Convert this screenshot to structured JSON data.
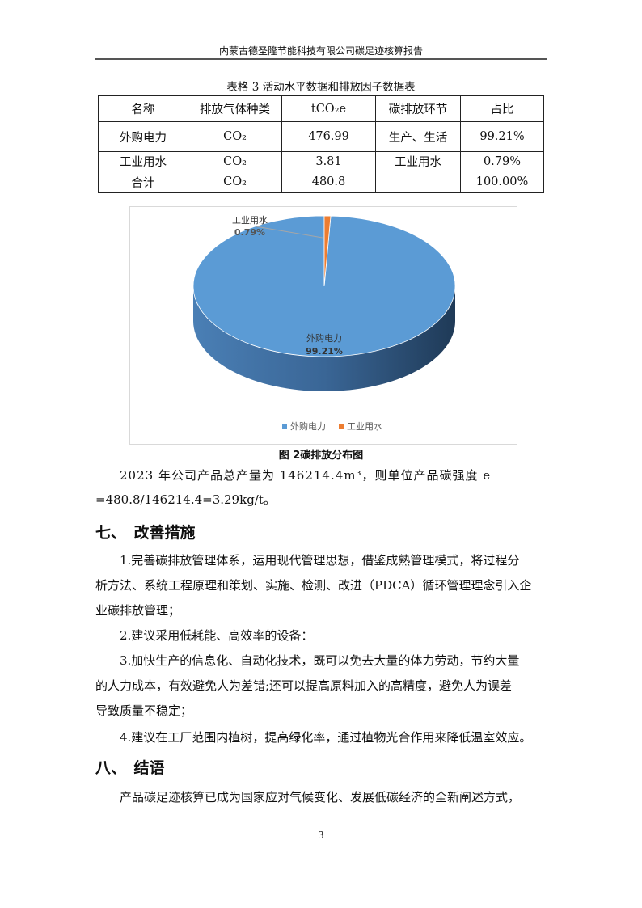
{
  "header": "内蒙古德圣隆节能科技有限公司碳足迹核算报告",
  "table": {
    "caption": "表格 3 活动水平数据和排放因子数据表",
    "headers": [
      "名称",
      "排放气体种类",
      "tCO₂e",
      "碳排放环节",
      "占比"
    ],
    "rows": [
      [
        "外购电力",
        "CO₂",
        "476.99",
        "生产、生活",
        "99.21%"
      ],
      [
        "工业用水",
        "CO₂",
        "3.81",
        "工业用水",
        "0.79%"
      ],
      [
        "合计",
        "CO₂",
        "480.8",
        "",
        "100.00%"
      ]
    ]
  },
  "chart_data": {
    "type": "pie",
    "categories": [
      "外购电力",
      "工业用水"
    ],
    "values": [
      99.21,
      0.79
    ],
    "data_labels": [
      "99.21%",
      "0.79%"
    ],
    "colors": [
      "#5b9bd5",
      "#ed7d31"
    ],
    "style": "3d",
    "legend": "bottom"
  },
  "figure_caption": "图 2碳排放分布图",
  "paragraphs": {
    "p1a": "2023 年公司产品总产量为 146214.4m³，则单位产品碳强度 e",
    "p1b": "=480.8/146214.4=3.29kg/t。",
    "h7": "七、　改善措施",
    "m1a": "1.完善碳排放管理体系，运用现代管理思想，借鉴成熟管理模式，将过程分",
    "m1b": "析方法、系统工程原理和策划、实施、检测、改进（PDCA）循环管理理念引入企",
    "m1c": "业碳排放管理；",
    "m2": "2.建议采用低耗能、高效率的设备：",
    "m3a": "3.加快生产的信息化、自动化技术，既可以免去大量的体力劳动，节约大量",
    "m3b": "的人力成本，有效避免人为差错;还可以提高原料加入的高精度，避免人为误差",
    "m3c": "导致质量不稳定；",
    "m4": "4.建议在工厂范围内植树，提高绿化率，通过植物光合作用来降低温室效应。",
    "h8": "八、　结语",
    "c1": "产品碳足迹核算已成为国家应对气候变化、发展低碳经济的全新阐述方式，"
  },
  "page_number": "3"
}
